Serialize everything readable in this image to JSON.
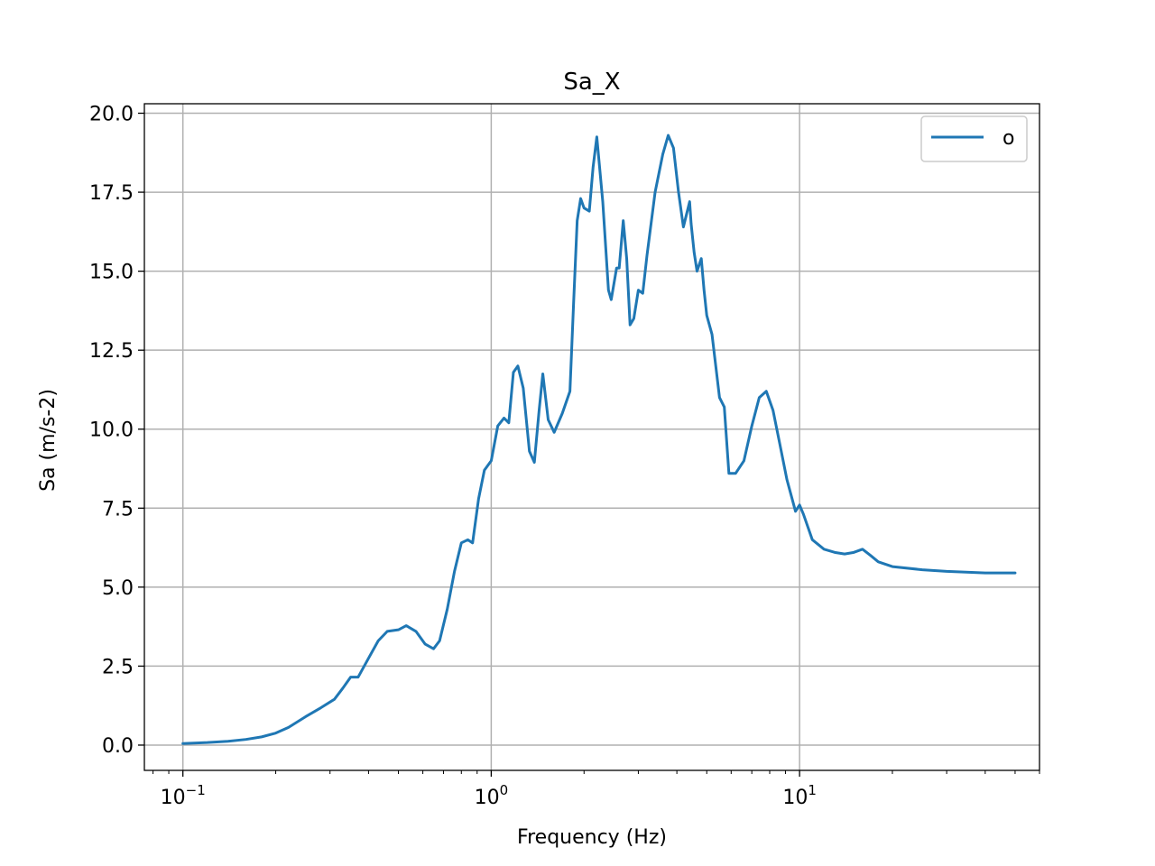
{
  "chart_data": {
    "type": "line",
    "title": "Sa_X",
    "xlabel": "Frequency (Hz)",
    "ylabel": "Sa (m/s-2)",
    "x_scale": "log",
    "xlim": [
      0.075,
      60
    ],
    "ylim": [
      -0.8,
      20.3
    ],
    "grid": true,
    "legend": {
      "placement": "upper-right",
      "entries": [
        "o"
      ]
    },
    "x_ticks": [
      {
        "value": 0.1,
        "base": "10",
        "exp": "−1"
      },
      {
        "value": 1,
        "base": "10",
        "exp": "0"
      },
      {
        "value": 10,
        "base": "10",
        "exp": "1"
      }
    ],
    "y_ticks": [
      {
        "value": 0,
        "label": "0.0"
      },
      {
        "value": 2.5,
        "label": "2.5"
      },
      {
        "value": 5,
        "label": "5.0"
      },
      {
        "value": 7.5,
        "label": "7.5"
      },
      {
        "value": 10,
        "label": "10.0"
      },
      {
        "value": 12.5,
        "label": "12.5"
      },
      {
        "value": 15,
        "label": "15.0"
      },
      {
        "value": 17.5,
        "label": "17.5"
      },
      {
        "value": 20,
        "label": "20.0"
      }
    ],
    "series": [
      {
        "name": "o",
        "color": "#1f77b4",
        "x": [
          0.1,
          0.12,
          0.14,
          0.16,
          0.18,
          0.2,
          0.22,
          0.25,
          0.28,
          0.31,
          0.33,
          0.35,
          0.37,
          0.4,
          0.43,
          0.46,
          0.5,
          0.53,
          0.57,
          0.61,
          0.65,
          0.68,
          0.72,
          0.76,
          0.8,
          0.84,
          0.87,
          0.91,
          0.95,
          1.0,
          1.05,
          1.1,
          1.14,
          1.18,
          1.22,
          1.27,
          1.33,
          1.38,
          1.43,
          1.47,
          1.53,
          1.6,
          1.7,
          1.8,
          1.85,
          1.9,
          1.95,
          2.0,
          2.08,
          2.14,
          2.2,
          2.3,
          2.4,
          2.45,
          2.55,
          2.6,
          2.68,
          2.75,
          2.82,
          2.9,
          3.0,
          3.1,
          3.2,
          3.4,
          3.6,
          3.75,
          3.9,
          4.05,
          4.2,
          4.4,
          4.45,
          4.55,
          4.65,
          4.8,
          4.9,
          5.0,
          5.2,
          5.5,
          5.7,
          5.9,
          6.2,
          6.6,
          7.0,
          7.4,
          7.8,
          8.2,
          8.6,
          9.1,
          9.7,
          10.0,
          10.3,
          11.0,
          12.0,
          13.0,
          14.0,
          15.0,
          16.0,
          17.0,
          18.0,
          20.0,
          25.0,
          30.0,
          40.0,
          50.0
        ],
        "values": [
          0.05,
          0.08,
          0.12,
          0.18,
          0.26,
          0.38,
          0.56,
          0.9,
          1.18,
          1.45,
          1.8,
          2.15,
          2.15,
          2.75,
          3.3,
          3.6,
          3.65,
          3.78,
          3.6,
          3.2,
          3.05,
          3.3,
          4.3,
          5.5,
          6.4,
          6.5,
          6.4,
          7.8,
          8.7,
          9.0,
          10.1,
          10.35,
          10.2,
          11.8,
          12.0,
          11.3,
          9.3,
          8.95,
          10.6,
          11.75,
          10.3,
          9.9,
          10.5,
          11.2,
          14.0,
          16.6,
          17.3,
          17.0,
          16.9,
          18.3,
          19.25,
          17.2,
          14.4,
          14.1,
          15.1,
          15.1,
          16.6,
          15.4,
          13.3,
          13.5,
          14.4,
          14.3,
          15.5,
          17.5,
          18.7,
          19.3,
          18.9,
          17.5,
          16.4,
          17.2,
          16.5,
          15.6,
          15.0,
          15.4,
          14.4,
          13.6,
          13.0,
          11.0,
          10.7,
          8.6,
          8.6,
          9.0,
          10.1,
          11.0,
          11.2,
          10.6,
          9.6,
          8.4,
          7.4,
          7.6,
          7.3,
          6.5,
          6.2,
          6.1,
          6.05,
          6.1,
          6.2,
          6.0,
          5.8,
          5.65,
          5.55,
          5.5,
          5.45,
          5.45
        ]
      }
    ]
  }
}
